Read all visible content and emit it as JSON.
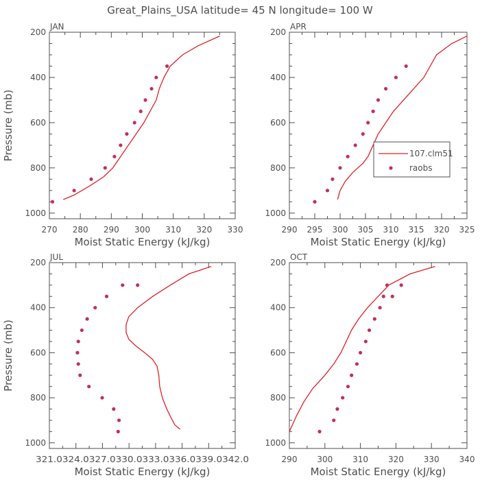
{
  "figure": {
    "title": "Great_Plains_USA   latitude= 45 N longitude= 100 W"
  },
  "colors": {
    "axis": "#4d4d4d",
    "model_line": "#e01f26",
    "obs_points": "#c0305a"
  },
  "chart_data": [
    {
      "type": "line",
      "panel": "JAN",
      "xlabel": "Moist Static Energy (kJ/kg)",
      "ylabel": "Pressure (mb)",
      "xlim": [
        270,
        330
      ],
      "ylim": [
        1025,
        200
      ],
      "xticks": [
        270,
        280,
        290,
        300,
        310,
        320,
        330
      ],
      "xtick_labels": [
        "270",
        "280",
        "290",
        "300",
        "310",
        "320",
        "330"
      ],
      "yticks": [
        200,
        400,
        600,
        800,
        1000
      ],
      "ytick_labels": [
        "200",
        "400",
        "600",
        "800",
        "1000"
      ],
      "series": [
        {
          "name": "107.clm51",
          "kind": "line",
          "x": [
            274.5,
            278,
            283,
            287.5,
            290.5,
            293,
            295.5,
            298,
            300.5,
            302.5,
            304.5,
            305.5,
            307,
            309,
            313,
            318,
            325
          ],
          "y": [
            940,
            920,
            880,
            840,
            800,
            750,
            700,
            650,
            600,
            550,
            500,
            450,
            400,
            350,
            300,
            260,
            217
          ]
        },
        {
          "name": "raobs",
          "kind": "scatter",
          "x": [
            271,
            278,
            283.5,
            288,
            291,
            293,
            295,
            297.5,
            299.5,
            301,
            303,
            304.5,
            308
          ],
          "y": [
            950,
            900,
            850,
            800,
            750,
            700,
            650,
            600,
            550,
            500,
            450,
            400,
            350
          ]
        }
      ]
    },
    {
      "type": "line",
      "panel": "APR",
      "xlabel": "Moist Static Energy (kJ/kg)",
      "ylabel": "",
      "xlim": [
        290,
        325
      ],
      "ylim": [
        1025,
        200
      ],
      "xticks": [
        290,
        295,
        300,
        305,
        310,
        315,
        320,
        325
      ],
      "xtick_labels": [
        "290",
        "295",
        "300",
        "305",
        "310",
        "315",
        "320",
        "325"
      ],
      "yticks": [
        200,
        400,
        600,
        800,
        1000
      ],
      "ytick_labels": [
        "200",
        "400",
        "600",
        "800",
        "1000"
      ],
      "legend": {
        "placement": "center-right",
        "entries": [
          "107.clm51",
          "raobs"
        ]
      },
      "series": [
        {
          "name": "107.clm51",
          "kind": "line",
          "x": [
            299.5,
            300,
            301,
            302.5,
            304.5,
            305.5,
            306.5,
            307.5,
            309,
            310.5,
            312.5,
            314.5,
            316.5,
            319,
            322,
            325
          ],
          "y": [
            940,
            900,
            860,
            820,
            780,
            750,
            700,
            650,
            600,
            550,
            500,
            450,
            400,
            300,
            250,
            217
          ]
        },
        {
          "name": "raobs",
          "kind": "scatter",
          "x": [
            295,
            297.5,
            298.5,
            300,
            301.5,
            303,
            304.5,
            305.5,
            306.5,
            307.5,
            309,
            311,
            313
          ],
          "y": [
            950,
            900,
            850,
            800,
            750,
            700,
            650,
            600,
            550,
            500,
            450,
            400,
            350
          ]
        }
      ]
    },
    {
      "type": "line",
      "panel": "JUL",
      "xlabel": "Moist Static Energy (kJ/kg)",
      "ylabel": "Pressure (mb)",
      "xlim": [
        321.03,
        342.03
      ],
      "ylim": [
        1025,
        200
      ],
      "xticks": [
        321.03,
        324.03,
        327.03,
        330.03,
        333.03,
        336.03,
        339.03,
        342.03
      ],
      "xtick_labels": [
        "321.0",
        "324.0",
        "327.0",
        "330.0",
        "333.0",
        "336.0",
        "339.0",
        "342.0"
      ],
      "xtick_joined_label": "321.0324.0327.0330.0333.0336.0339.0342.0",
      "yticks": [
        200,
        400,
        600,
        800,
        1000
      ],
      "ytick_labels": [
        "200",
        "400",
        "600",
        "800",
        "1000"
      ],
      "series": [
        {
          "name": "107.clm51",
          "kind": "line",
          "x": [
            335.8,
            335.2,
            334.8,
            334.3,
            333.8,
            333.5,
            333.4,
            333.2,
            332.7,
            331.8,
            330.8,
            330.0,
            329.7,
            329.7,
            330.0,
            331.0,
            332.7,
            334.7,
            336.8,
            339.3
          ],
          "y": [
            940,
            920,
            890,
            850,
            800,
            750,
            700,
            660,
            630,
            600,
            570,
            540,
            510,
            475,
            440,
            400,
            350,
            300,
            250,
            217
          ]
        },
        {
          "name": "raobs",
          "kind": "scatter",
          "x": [
            328.8,
            328.9,
            328.3,
            327.0,
            325.5,
            324.5,
            324.3,
            324.2,
            324.3,
            324.7,
            325.3,
            326.2,
            327.5,
            329.3,
            331.0
          ],
          "y": [
            950,
            900,
            850,
            800,
            750,
            700,
            650,
            600,
            550,
            500,
            450,
            400,
            350,
            300,
            300
          ]
        }
      ]
    },
    {
      "type": "line",
      "panel": "OCT",
      "xlabel": "Moist Static Energy (kJ/kg)",
      "ylabel": "",
      "xlim": [
        290,
        340
      ],
      "ylim": [
        1025,
        200
      ],
      "xticks": [
        290,
        300,
        310,
        320,
        330,
        340
      ],
      "xtick_labels": [
        "290",
        "300",
        "310",
        "320",
        "330",
        "340"
      ],
      "yticks": [
        200,
        400,
        600,
        800,
        1000
      ],
      "ytick_labels": [
        "200",
        "400",
        "600",
        "800",
        "1000"
      ],
      "series": [
        {
          "name": "107.clm51",
          "kind": "line",
          "x": [
            290,
            292,
            294,
            296.5,
            300,
            302.5,
            304.5,
            306,
            307.5,
            309.5,
            312,
            315,
            318,
            324,
            331
          ],
          "y": [
            950,
            880,
            820,
            760,
            700,
            650,
            600,
            550,
            500,
            450,
            400,
            350,
            300,
            250,
            217
          ]
        },
        {
          "name": "raobs",
          "kind": "scatter",
          "x": [
            298.5,
            302.5,
            303.5,
            305,
            306.5,
            307.5,
            309,
            310,
            311.5,
            312.5,
            314,
            315.5,
            316.5,
            317.5,
            319,
            321.5
          ],
          "y": [
            950,
            900,
            850,
            800,
            750,
            700,
            650,
            600,
            550,
            500,
            450,
            400,
            350,
            300,
            350,
            300
          ]
        }
      ]
    }
  ]
}
